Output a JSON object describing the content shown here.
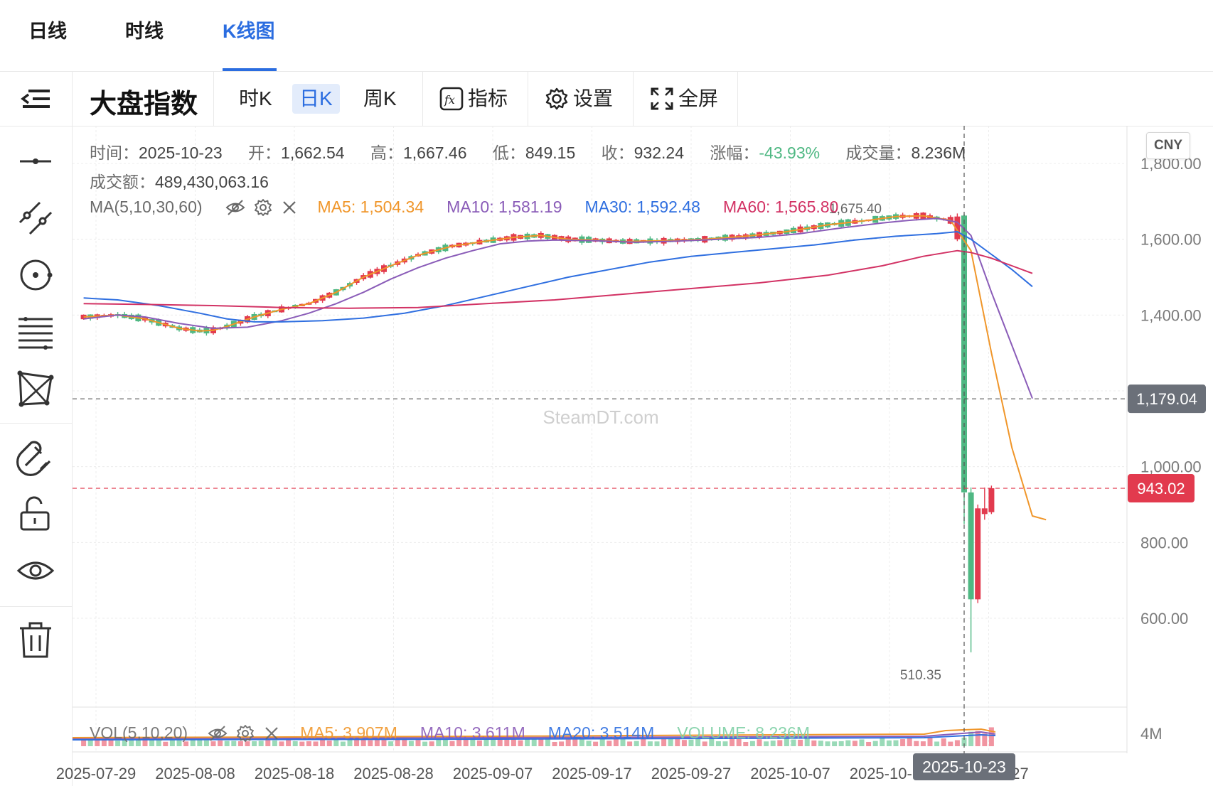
{
  "top_tabs": [
    "日线",
    "时线",
    "K线图"
  ],
  "active_tab": "K线图",
  "toolbar": {
    "title": "大盘指数",
    "periods": [
      "时K",
      "日K",
      "周K"
    ],
    "active_period": "日K",
    "indicators_label": "指标",
    "settings_label": "设置",
    "fullscreen_label": "全屏"
  },
  "sidebar_icons": [
    "menu-collapse-icon",
    "horizontal-line-icon",
    "trend-line-icon",
    "circle-dot-icon",
    "fibonacci-lines-icon",
    "pattern-icon",
    "magnet-icon",
    "lock-open-icon",
    "eye-icon",
    "trash-icon"
  ],
  "currency": "CNY",
  "watermark": "SteamDT.com",
  "info": {
    "time_label": "时间：",
    "time": "2025-10-23",
    "open_label": "开：",
    "open": "1,662.54",
    "high_label": "高：",
    "high": "1,667.46",
    "low_label": "低：",
    "low": "849.15",
    "close_label": "收：",
    "close": "932.24",
    "change_label": "涨幅：",
    "change": "-43.93%",
    "volume_label": "成交量：",
    "volume": "8.236M",
    "amount_label": "成交额：",
    "amount": "489,430,063.16"
  },
  "ma_legend": {
    "label": "MA(5,10,30,60)",
    "items": [
      {
        "text": "MA5: 1,504.34",
        "color": "#f0962a"
      },
      {
        "text": "MA10: 1,581.19",
        "color": "#8a5cb8"
      },
      {
        "text": "MA30: 1,592.48",
        "color": "#2f6fe0"
      },
      {
        "text": "MA60: 1,565.80",
        "color": "#d23264"
      }
    ]
  },
  "vol_legend": {
    "label": "VOL(5,10,20)",
    "items": [
      {
        "text": "MA5: 3.907M",
        "color": "#f0962a"
      },
      {
        "text": "MA10: 3.611M",
        "color": "#8a5cb8"
      },
      {
        "text": "MA20: 3.514M",
        "color": "#2f6fe0"
      },
      {
        "text": "VOLUME: 8.236M",
        "color": "#7fd0a6"
      }
    ]
  },
  "colors": {
    "up": "#e23a4e",
    "down": "#4fb883",
    "crosshair": "#555555",
    "last_price": "#e23a4e",
    "axis_text": "#7a7a7a",
    "grid": "#ececec"
  },
  "chart_data": {
    "type": "candlestick",
    "y_ticks": [
      "1,800.00",
      "1,600.00",
      "1,400.00",
      "1,200.00",
      "1,000.00",
      "800.00",
      "600.00"
    ],
    "y_tick_values": [
      1800,
      1600,
      1400,
      1200,
      1000,
      800,
      600
    ],
    "ylim": [
      440,
      1850
    ],
    "x_ticks": [
      "2025-07-29",
      "2025-08-08",
      "2025-08-18",
      "2025-08-28",
      "2025-09-07",
      "2025-09-17",
      "2025-09-27",
      "2025-10-07",
      "2025-10-17",
      "2025-10-27"
    ],
    "crosshair_price": "1,179.04",
    "crosshair_date": "2025-10-23",
    "last_price": "943.02",
    "max_label": "1,675.40",
    "min_label": "510.35",
    "vol_tick": "4M",
    "ma_series": [
      {
        "name": "MA5",
        "points": [
          [
            1,
            1395
          ],
          [
            6,
            1400
          ],
          [
            10,
            1390
          ],
          [
            15,
            1365
          ],
          [
            18,
            1358
          ],
          [
            20,
            1360
          ],
          [
            22,
            1370
          ],
          [
            26,
            1395
          ],
          [
            30,
            1415
          ],
          [
            34,
            1430
          ],
          [
            38,
            1460
          ],
          [
            42,
            1500
          ],
          [
            46,
            1530
          ],
          [
            50,
            1558
          ],
          [
            55,
            1582
          ],
          [
            60,
            1595
          ],
          [
            64,
            1605
          ],
          [
            68,
            1610
          ],
          [
            72,
            1600
          ],
          [
            76,
            1598
          ],
          [
            80,
            1594
          ],
          [
            86,
            1596
          ],
          [
            92,
            1600
          ],
          [
            98,
            1608
          ],
          [
            104,
            1620
          ],
          [
            110,
            1638
          ],
          [
            116,
            1650
          ],
          [
            120,
            1660
          ],
          [
            124,
            1662
          ],
          [
            128,
            1650
          ],
          [
            131,
            1570
          ],
          [
            134,
            1300
          ],
          [
            137,
            1050
          ],
          [
            140,
            870
          ],
          [
            142,
            860
          ]
        ]
      },
      {
        "name": "MA10",
        "points": [
          [
            1,
            1390
          ],
          [
            6,
            1400
          ],
          [
            10,
            1395
          ],
          [
            15,
            1378
          ],
          [
            20,
            1365
          ],
          [
            25,
            1368
          ],
          [
            30,
            1385
          ],
          [
            34,
            1405
          ],
          [
            38,
            1430
          ],
          [
            42,
            1460
          ],
          [
            46,
            1495
          ],
          [
            50,
            1525
          ],
          [
            54,
            1550
          ],
          [
            58,
            1570
          ],
          [
            62,
            1588
          ],
          [
            66,
            1595
          ],
          [
            70,
            1598
          ],
          [
            76,
            1596
          ],
          [
            82,
            1592
          ],
          [
            88,
            1595
          ],
          [
            94,
            1600
          ],
          [
            100,
            1605
          ],
          [
            106,
            1615
          ],
          [
            112,
            1630
          ],
          [
            118,
            1643
          ],
          [
            122,
            1650
          ],
          [
            126,
            1655
          ],
          [
            129,
            1645
          ],
          [
            131,
            1610
          ],
          [
            134,
            1460
          ],
          [
            137,
            1320
          ],
          [
            140,
            1180
          ]
        ]
      },
      {
        "name": "MA30",
        "points": [
          [
            1,
            1445
          ],
          [
            6,
            1440
          ],
          [
            12,
            1425
          ],
          [
            18,
            1405
          ],
          [
            22,
            1390
          ],
          [
            26,
            1382
          ],
          [
            30,
            1382
          ],
          [
            36,
            1385
          ],
          [
            42,
            1392
          ],
          [
            48,
            1405
          ],
          [
            54,
            1425
          ],
          [
            60,
            1450
          ],
          [
            66,
            1475
          ],
          [
            72,
            1500
          ],
          [
            78,
            1520
          ],
          [
            84,
            1540
          ],
          [
            90,
            1555
          ],
          [
            96,
            1565
          ],
          [
            102,
            1575
          ],
          [
            108,
            1585
          ],
          [
            114,
            1598
          ],
          [
            120,
            1608
          ],
          [
            126,
            1615
          ],
          [
            129,
            1620
          ],
          [
            131,
            1600
          ],
          [
            134,
            1560
          ],
          [
            137,
            1520
          ],
          [
            140,
            1475
          ]
        ]
      },
      {
        "name": "MA60",
        "points": [
          [
            1,
            1430
          ],
          [
            10,
            1428
          ],
          [
            20,
            1425
          ],
          [
            30,
            1420
          ],
          [
            40,
            1418
          ],
          [
            50,
            1420
          ],
          [
            60,
            1430
          ],
          [
            70,
            1440
          ],
          [
            80,
            1455
          ],
          [
            90,
            1470
          ],
          [
            100,
            1485
          ],
          [
            110,
            1505
          ],
          [
            118,
            1530
          ],
          [
            124,
            1555
          ],
          [
            129,
            1570
          ],
          [
            131,
            1565
          ],
          [
            134,
            1550
          ],
          [
            137,
            1530
          ],
          [
            140,
            1510
          ]
        ]
      }
    ]
  }
}
